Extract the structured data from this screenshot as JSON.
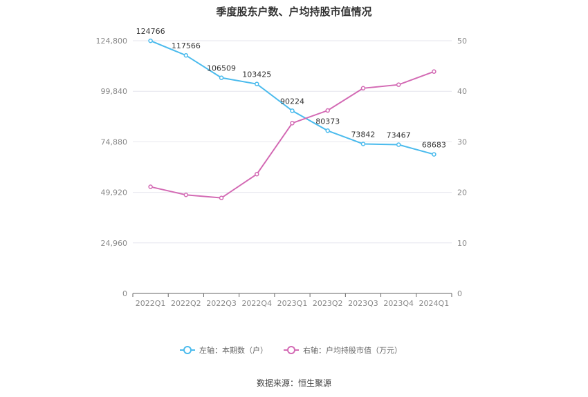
{
  "title": "季度股东户数、户均持股市值情况",
  "source": "数据来源：恒生聚源",
  "colors": {
    "left_series": "#4bbbed",
    "right_series": "#d36ab4",
    "grid": "#e6e6ee",
    "axis_text": "#888888"
  },
  "chart_data": {
    "type": "line",
    "title": "季度股东户数、户均持股市值情况",
    "categories": [
      "2022Q1",
      "2022Q2",
      "2022Q3",
      "2022Q4",
      "2023Q1",
      "2023Q2",
      "2023Q3",
      "2023Q4",
      "2024Q1"
    ],
    "left_axis": {
      "ylim": [
        0,
        124800
      ],
      "ticks": [
        0,
        24960,
        49920,
        74880,
        99840,
        124800
      ],
      "tick_labels": [
        "0",
        "24,960",
        "49,920",
        "74,880",
        "99,840",
        "124,800"
      ]
    },
    "right_axis": {
      "ylim": [
        0,
        50
      ],
      "ticks": [
        0,
        10,
        20,
        30,
        40,
        50
      ],
      "tick_labels": [
        "0",
        "10",
        "20",
        "30",
        "40",
        "50"
      ]
    },
    "series": [
      {
        "name": "左轴：本期数（户）",
        "axis": "left",
        "values": [
          124766,
          117566,
          106509,
          103425,
          90224,
          80373,
          73842,
          73467,
          68683
        ],
        "labels": [
          "124766",
          "117566",
          "106509",
          "103425",
          "90224",
          "80373",
          "73842",
          "73467",
          "68683"
        ]
      },
      {
        "name": "右轴：户均持股市值（万元）",
        "axis": "right",
        "values": [
          21.1,
          19.5,
          18.9,
          23.6,
          33.7,
          36.2,
          40.6,
          41.3,
          43.9
        ]
      }
    ],
    "grid": true,
    "legend": "bottom-center"
  }
}
